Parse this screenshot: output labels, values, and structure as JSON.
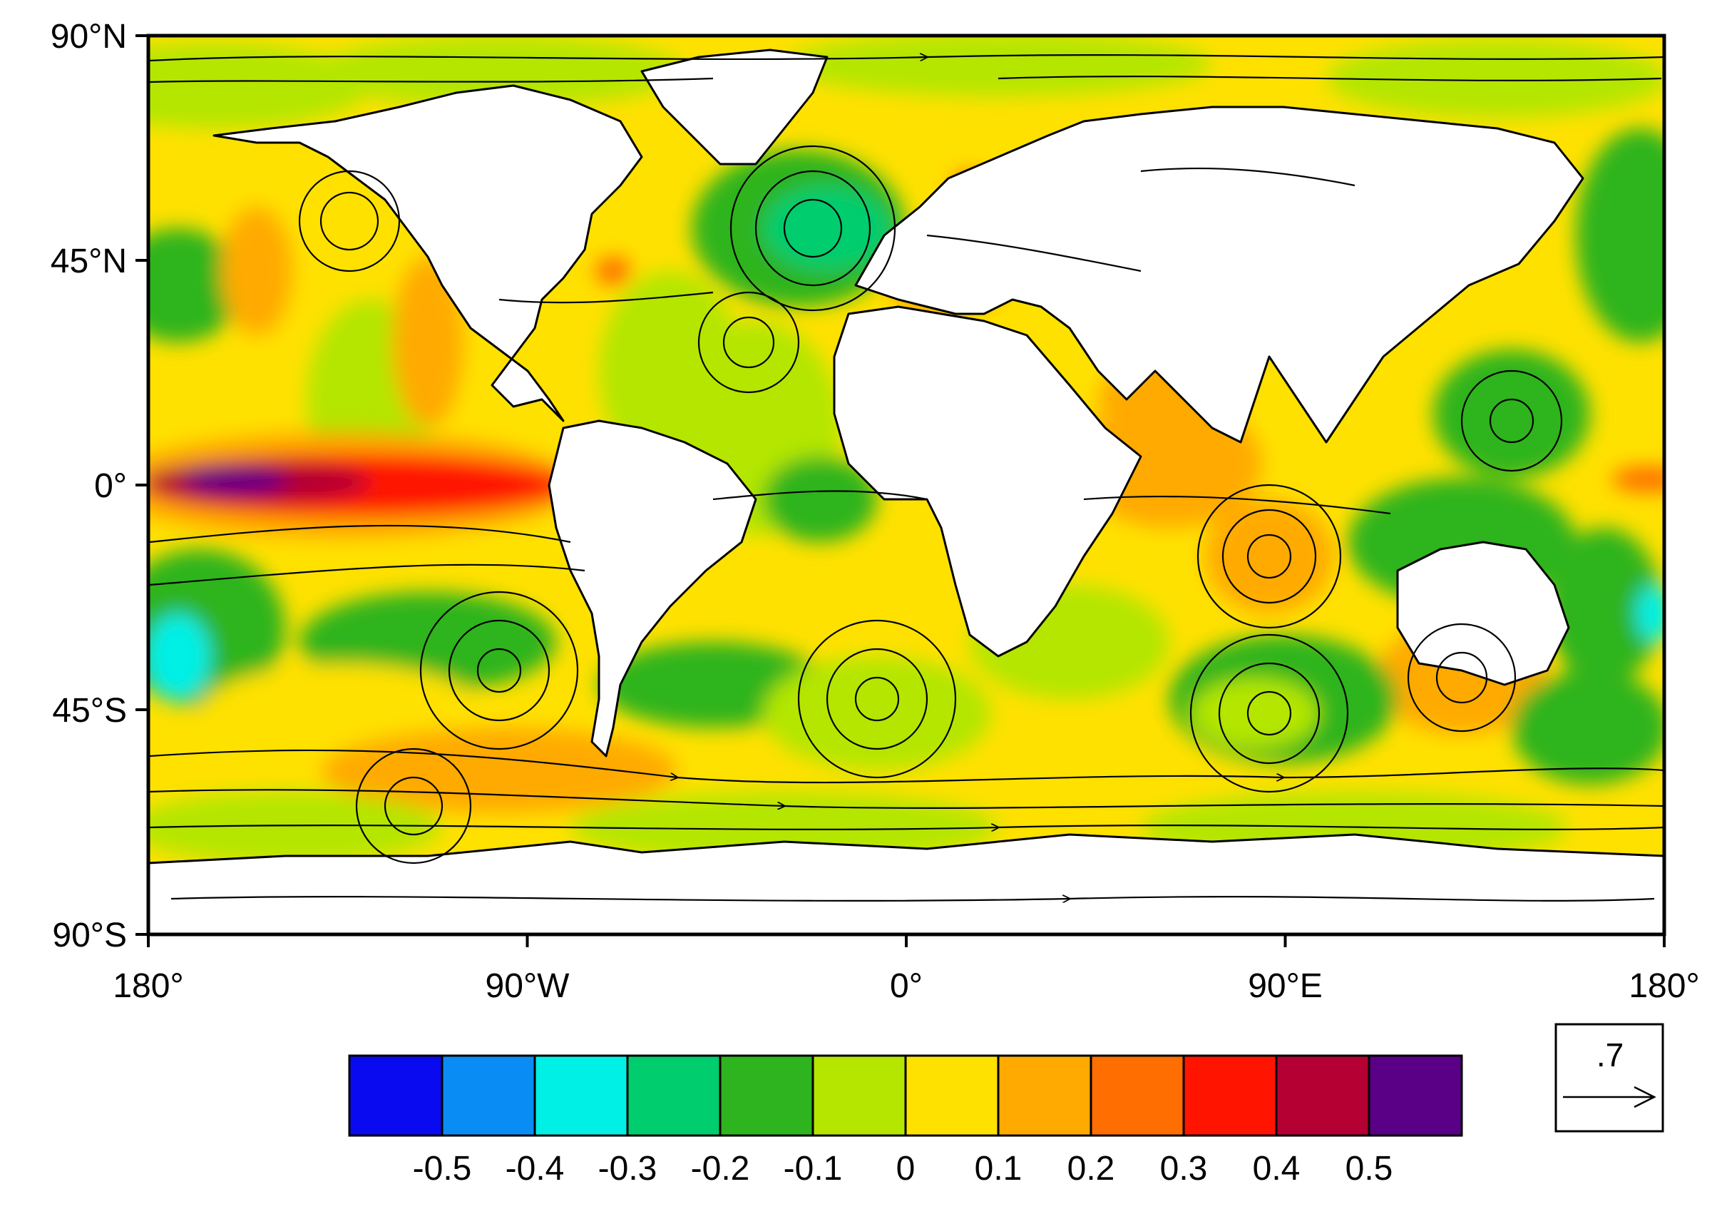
{
  "map": {
    "lat_ticks": [
      "90°N",
      "45°N",
      "0°",
      "45°S",
      "90°S"
    ],
    "lon_ticks": [
      "180°",
      "90°W",
      "0°",
      "90°E",
      "180°"
    ],
    "lat_range": [
      -90,
      90
    ],
    "lon_range": [
      -180,
      180
    ],
    "field_type": "filled contours with streamlines and vectors",
    "land_color": "#ffffff",
    "coastline_color": "#000000"
  },
  "colorbar": {
    "colors": [
      "#0a0af0",
      "#0a8cf5",
      "#00f0e6",
      "#00cd6e",
      "#2db41e",
      "#b4e600",
      "#ffe100",
      "#ffaa00",
      "#ff6e00",
      "#ff1400",
      "#b40032",
      "#5a0087"
    ],
    "labels": [
      "-0.5",
      "-0.4",
      "-0.3",
      "-0.2",
      "-0.1",
      "0",
      "0.1",
      "0.2",
      "0.3",
      "0.4",
      "0.5"
    ]
  },
  "reference_vector": {
    "label": ".7"
  }
}
